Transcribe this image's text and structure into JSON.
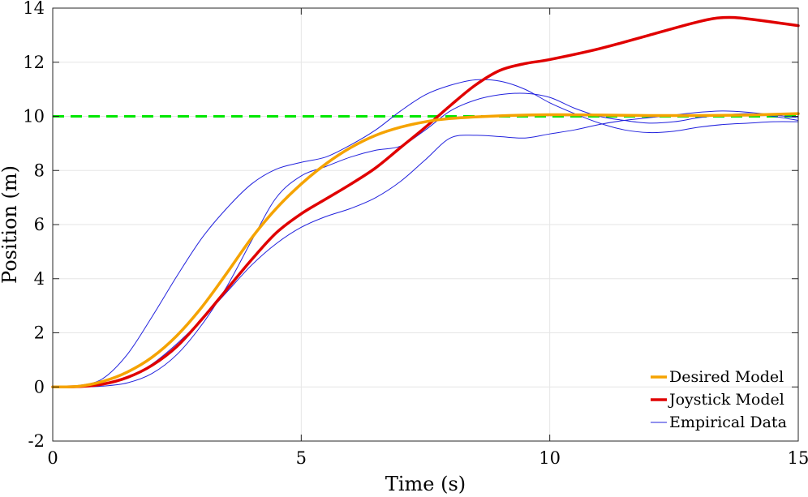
{
  "chart_data": {
    "type": "line",
    "title": "",
    "xlabel": "Time (s)",
    "ylabel": "Position (m)",
    "xlim": [
      0,
      15
    ],
    "ylim": [
      -2,
      14
    ],
    "xticks": [
      0,
      5,
      10,
      15
    ],
    "yticks": [
      -2,
      0,
      2,
      4,
      6,
      8,
      10,
      12,
      14
    ],
    "grid": true,
    "legend_position": "bottom-right",
    "colors": {
      "desired": "#f5a300",
      "joystick": "#e00000",
      "empirical": "#2222dd",
      "target": "#00e600"
    },
    "target_line": {
      "y": 10,
      "style": "dashed"
    },
    "series": [
      {
        "name": "Desired Model",
        "x": [
          0,
          0.5,
          1,
          1.5,
          2,
          2.5,
          3,
          3.5,
          4,
          4.5,
          5,
          5.5,
          6,
          6.5,
          7,
          7.5,
          8,
          9,
          10,
          11,
          12,
          13,
          14,
          15
        ],
        "values": [
          0,
          0.02,
          0.2,
          0.55,
          1.1,
          1.9,
          2.95,
          4.2,
          5.5,
          6.6,
          7.5,
          8.25,
          8.85,
          9.3,
          9.6,
          9.8,
          9.92,
          10.02,
          10.06,
          10.05,
          10.03,
          10.03,
          10.05,
          10.1
        ]
      },
      {
        "name": "Joystick Model",
        "x": [
          0,
          0.5,
          1,
          1.5,
          2,
          2.5,
          3,
          3.5,
          4,
          4.5,
          5,
          5.5,
          6,
          6.5,
          7,
          7.5,
          8,
          8.5,
          9,
          9.5,
          10,
          11,
          12,
          13,
          13.5,
          14,
          15
        ],
        "values": [
          0,
          0.01,
          0.1,
          0.35,
          0.8,
          1.5,
          2.5,
          3.6,
          4.7,
          5.7,
          6.4,
          6.95,
          7.5,
          8.1,
          8.85,
          9.6,
          10.4,
          11.15,
          11.7,
          11.95,
          12.1,
          12.5,
          13.0,
          13.5,
          13.65,
          13.6,
          13.35
        ]
      },
      {
        "name": "Empirical Data",
        "x": [
          0,
          0.5,
          1,
          1.5,
          2,
          2.5,
          3,
          3.5,
          4,
          4.5,
          5,
          5.5,
          6,
          6.5,
          7,
          7.5,
          8,
          8.5,
          9,
          9.5,
          10,
          10.5,
          11,
          11.5,
          12,
          12.5,
          13,
          13.5,
          14,
          14.5,
          15
        ],
        "values": [
          0,
          0.05,
          0.3,
          1.2,
          2.6,
          4.1,
          5.5,
          6.6,
          7.5,
          8.05,
          8.3,
          8.5,
          8.95,
          9.5,
          10.2,
          10.8,
          11.15,
          11.35,
          11.3,
          11.0,
          10.5,
          10.1,
          9.75,
          9.5,
          9.4,
          9.45,
          9.6,
          9.7,
          9.75,
          9.8,
          9.8
        ]
      },
      {
        "name": "Empirical Data",
        "x": [
          0,
          0.5,
          1,
          1.5,
          2,
          2.5,
          3,
          3.5,
          4,
          4.5,
          5,
          5.5,
          6,
          6.5,
          7,
          7.5,
          8,
          8.5,
          9,
          9.5,
          10,
          10.5,
          11,
          11.5,
          12,
          12.5,
          13,
          13.5,
          14,
          14.5,
          15
        ],
        "values": [
          0,
          0.0,
          0.03,
          0.15,
          0.5,
          1.2,
          2.3,
          3.7,
          5.4,
          7.0,
          7.8,
          8.15,
          8.5,
          8.75,
          8.9,
          9.5,
          10.2,
          10.6,
          10.8,
          10.85,
          10.7,
          10.3,
          10.0,
          9.85,
          9.75,
          9.8,
          9.95,
          10.05,
          10.1,
          10.0,
          9.85
        ]
      },
      {
        "name": "Empirical Data",
        "x": [
          0,
          0.5,
          1,
          1.5,
          2,
          2.5,
          3,
          3.5,
          4,
          4.5,
          5,
          5.5,
          6,
          6.5,
          7,
          7.5,
          8,
          8.5,
          9,
          9.5,
          10,
          10.5,
          11,
          11.5,
          12,
          12.5,
          13,
          13.5,
          14,
          14.5,
          15
        ],
        "values": [
          0,
          0.01,
          0.08,
          0.35,
          0.85,
          1.6,
          2.5,
          3.5,
          4.5,
          5.3,
          5.9,
          6.3,
          6.6,
          7.0,
          7.6,
          8.4,
          9.2,
          9.3,
          9.25,
          9.2,
          9.35,
          9.5,
          9.7,
          9.85,
          9.95,
          10.05,
          10.15,
          10.2,
          10.15,
          10.05,
          9.95
        ]
      }
    ]
  }
}
